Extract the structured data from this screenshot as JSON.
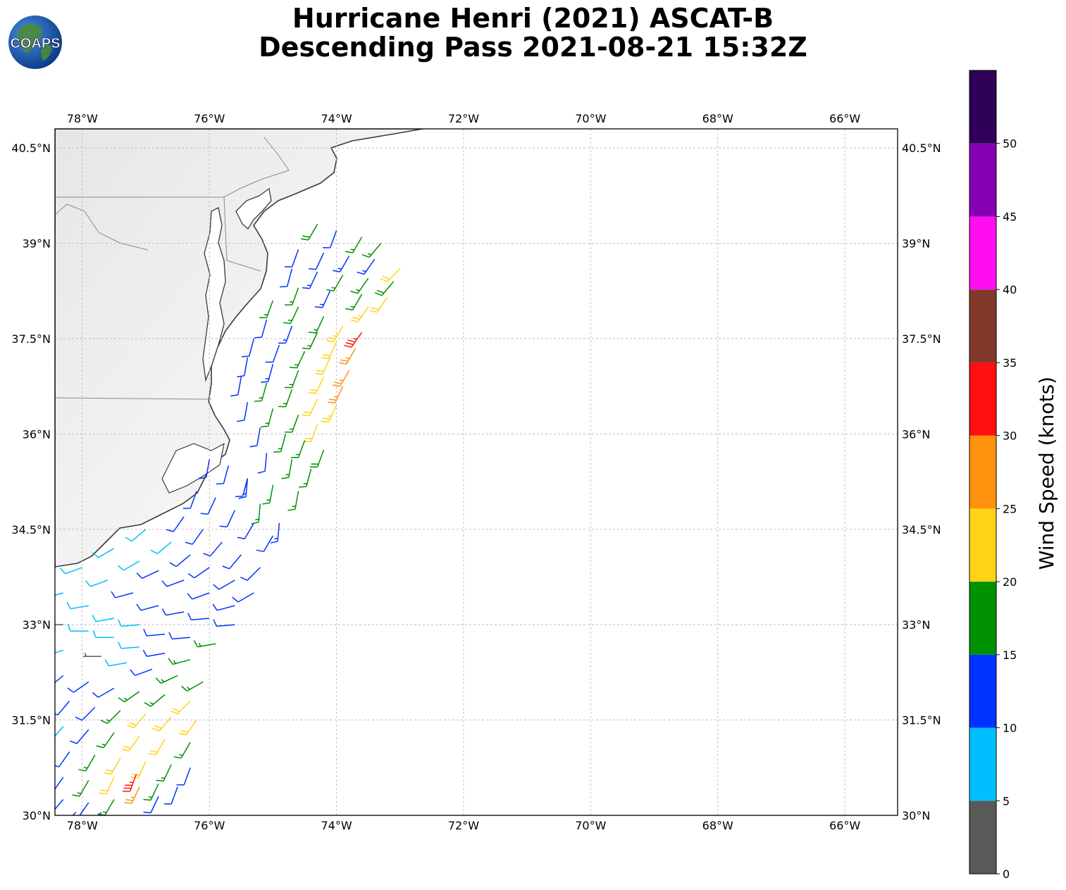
{
  "title": {
    "line1": "Hurricane Henri (2021) ASCAT-B",
    "line2": "Descending Pass 2021-08-21 15:32Z"
  },
  "logo": {
    "text": "COAPS",
    "icon": "globe-logo-icon"
  },
  "map": {
    "lon_range": [
      -78.43,
      -65.17
    ],
    "lat_range": [
      30.0,
      40.8
    ],
    "lon_ticks": [
      "78°W",
      "76°W",
      "74°W",
      "72°W",
      "70°W",
      "68°W",
      "66°W"
    ],
    "lat_ticks": [
      "40.5°N",
      "39°N",
      "37.5°N",
      "36°N",
      "34.5°N",
      "33°N",
      "31.5°N",
      "30°N"
    ],
    "gridlines": true,
    "background": "grey satellite imagery over land, white ocean"
  },
  "colorbar": {
    "label": "Wind Speed (knots)",
    "ticks": [
      "0",
      "5",
      "10",
      "15",
      "20",
      "25",
      "30",
      "35",
      "40",
      "45",
      "50"
    ],
    "bins": [
      {
        "min": 0,
        "max": 5,
        "color": "#595959"
      },
      {
        "min": 5,
        "max": 10,
        "color": "#00bfff"
      },
      {
        "min": 10,
        "max": 15,
        "color": "#0033ff"
      },
      {
        "min": 15,
        "max": 20,
        "color": "#009100"
      },
      {
        "min": 20,
        "max": 25,
        "color": "#ffd414"
      },
      {
        "min": 25,
        "max": 30,
        "color": "#ff930f"
      },
      {
        "min": 30,
        "max": 35,
        "color": "#ff1010"
      },
      {
        "min": 35,
        "max": 40,
        "color": "#80392b"
      },
      {
        "min": 40,
        "max": 45,
        "color": "#ff0ff0"
      },
      {
        "min": 45,
        "max": 50,
        "color": "#8600b3"
      },
      {
        "min": 50,
        "max": 55,
        "color": "#2e0058"
      }
    ]
  },
  "chart_data": {
    "type": "wind-barbs",
    "units": "knots",
    "note_direction": "direction in degrees the wind blows FROM",
    "swaths": [
      {
        "name": "north",
        "points": [
          [
            -74.3,
            39.3,
            18,
            210
          ],
          [
            -74.0,
            39.2,
            12,
            200
          ],
          [
            -73.6,
            39.1,
            16,
            210
          ],
          [
            -73.3,
            39.0,
            17,
            220
          ],
          [
            -74.6,
            38.9,
            11,
            200
          ],
          [
            -74.2,
            38.85,
            12,
            205
          ],
          [
            -73.8,
            38.8,
            13,
            210
          ],
          [
            -73.4,
            38.75,
            14,
            215
          ],
          [
            -73.0,
            38.6,
            22,
            225
          ],
          [
            -74.7,
            38.6,
            11,
            195
          ],
          [
            -74.3,
            38.55,
            13,
            205
          ],
          [
            -73.9,
            38.5,
            16,
            210
          ],
          [
            -73.5,
            38.45,
            17,
            215
          ],
          [
            -73.1,
            38.4,
            18,
            220
          ],
          [
            -74.6,
            38.3,
            16,
            200
          ],
          [
            -74.1,
            38.25,
            13,
            205
          ],
          [
            -73.6,
            38.2,
            16,
            210
          ],
          [
            -73.2,
            38.15,
            22,
            215
          ],
          [
            -73.5,
            38.0,
            24,
            215
          ]
        ]
      },
      {
        "name": "middle",
        "points": [
          [
            -75.0,
            38.1,
            16,
            200
          ],
          [
            -74.6,
            38.0,
            16,
            205
          ],
          [
            -74.2,
            37.85,
            17,
            205
          ],
          [
            -73.9,
            37.7,
            23,
            210
          ],
          [
            -73.6,
            37.6,
            33,
            215
          ],
          [
            -75.1,
            37.8,
            12,
            195
          ],
          [
            -74.7,
            37.7,
            13,
            200
          ],
          [
            -74.3,
            37.6,
            17,
            205
          ],
          [
            -74.0,
            37.45,
            22,
            205
          ],
          [
            -73.7,
            37.35,
            26,
            210
          ],
          [
            -75.3,
            37.5,
            11,
            195
          ],
          [
            -74.9,
            37.4,
            12,
            200
          ],
          [
            -74.5,
            37.3,
            16,
            205
          ],
          [
            -74.1,
            37.2,
            22,
            205
          ],
          [
            -73.8,
            37.0,
            27,
            210
          ],
          [
            -75.4,
            37.2,
            12,
            190
          ],
          [
            -75.0,
            37.1,
            13,
            195
          ],
          [
            -74.6,
            37.0,
            17,
            200
          ],
          [
            -74.2,
            36.9,
            22,
            205
          ],
          [
            -73.9,
            36.75,
            26,
            205
          ],
          [
            -75.5,
            36.9,
            11,
            190
          ],
          [
            -75.1,
            36.8,
            16,
            195
          ],
          [
            -74.7,
            36.7,
            17,
            200
          ],
          [
            -74.3,
            36.55,
            22,
            205
          ],
          [
            -74.0,
            36.45,
            24,
            205
          ],
          [
            -75.4,
            36.5,
            12,
            190
          ],
          [
            -75.0,
            36.4,
            16,
            195
          ],
          [
            -74.6,
            36.3,
            17,
            200
          ],
          [
            -74.3,
            36.15,
            22,
            200
          ],
          [
            -75.2,
            36.1,
            12,
            190
          ],
          [
            -74.8,
            36.0,
            16,
            195
          ],
          [
            -74.5,
            35.9,
            17,
            200
          ],
          [
            -74.2,
            35.75,
            18,
            200
          ],
          [
            -75.1,
            35.7,
            12,
            185
          ],
          [
            -74.7,
            35.6,
            17,
            190
          ],
          [
            -74.4,
            35.45,
            17,
            195
          ],
          [
            -75.4,
            35.3,
            13,
            185
          ],
          [
            -75.0,
            35.2,
            16,
            190
          ],
          [
            -74.6,
            35.1,
            17,
            190
          ],
          [
            -75.2,
            34.9,
            17,
            185
          ],
          [
            -74.9,
            34.6,
            13,
            185
          ]
        ]
      },
      {
        "name": "south",
        "points": [
          [
            -76.0,
            35.6,
            12,
            190
          ],
          [
            -75.7,
            35.5,
            12,
            195
          ],
          [
            -75.4,
            35.3,
            12,
            195
          ],
          [
            -76.2,
            35.1,
            12,
            200
          ],
          [
            -75.9,
            35.0,
            12,
            205
          ],
          [
            -75.6,
            34.8,
            12,
            205
          ],
          [
            -75.3,
            34.6,
            12,
            210
          ],
          [
            -75.0,
            34.4,
            12,
            210
          ],
          [
            -76.4,
            34.7,
            12,
            215
          ],
          [
            -76.1,
            34.5,
            12,
            215
          ],
          [
            -75.8,
            34.3,
            12,
            220
          ],
          [
            -75.5,
            34.1,
            12,
            220
          ],
          [
            -75.2,
            33.9,
            12,
            225
          ],
          [
            -77.0,
            34.5,
            8,
            230
          ],
          [
            -76.6,
            34.3,
            8,
            230
          ],
          [
            -76.3,
            34.1,
            12,
            230
          ],
          [
            -76.0,
            33.9,
            12,
            235
          ],
          [
            -75.6,
            33.7,
            12,
            240
          ],
          [
            -75.3,
            33.5,
            12,
            240
          ],
          [
            -77.5,
            34.2,
            8,
            240
          ],
          [
            -77.1,
            34.0,
            8,
            240
          ],
          [
            -76.8,
            33.85,
            12,
            245
          ],
          [
            -76.4,
            33.7,
            12,
            250
          ],
          [
            -76.0,
            33.5,
            12,
            250
          ],
          [
            -75.6,
            33.3,
            12,
            255
          ],
          [
            -78.0,
            33.9,
            8,
            250
          ],
          [
            -77.6,
            33.7,
            8,
            250
          ],
          [
            -77.2,
            33.5,
            12,
            255
          ],
          [
            -76.8,
            33.3,
            12,
            255
          ],
          [
            -76.4,
            33.2,
            12,
            260
          ],
          [
            -76.0,
            33.1,
            12,
            265
          ],
          [
            -75.6,
            33.0,
            12,
            265
          ],
          [
            -78.3,
            33.5,
            8,
            255
          ],
          [
            -77.9,
            33.3,
            8,
            260
          ],
          [
            -77.5,
            33.1,
            8,
            260
          ],
          [
            -77.1,
            33.0,
            8,
            265
          ],
          [
            -76.7,
            32.85,
            12,
            265
          ],
          [
            -76.3,
            32.8,
            12,
            265
          ],
          [
            -75.9,
            32.7,
            16,
            260
          ],
          [
            -78.3,
            33.0,
            3,
            270
          ],
          [
            -77.9,
            32.9,
            8,
            270
          ],
          [
            -77.5,
            32.8,
            8,
            270
          ],
          [
            -77.1,
            32.65,
            8,
            265
          ],
          [
            -76.7,
            32.55,
            12,
            260
          ],
          [
            -76.3,
            32.45,
            16,
            255
          ],
          [
            -78.3,
            32.6,
            8,
            250
          ],
          [
            -77.7,
            32.5,
            3,
            270
          ],
          [
            -77.3,
            32.4,
            8,
            260
          ],
          [
            -76.9,
            32.3,
            12,
            250
          ],
          [
            -76.5,
            32.2,
            16,
            245
          ],
          [
            -76.1,
            32.1,
            16,
            240
          ],
          [
            -78.3,
            32.2,
            12,
            230
          ],
          [
            -77.9,
            32.1,
            12,
            235
          ],
          [
            -77.5,
            32.0,
            12,
            240
          ],
          [
            -77.1,
            31.95,
            16,
            235
          ],
          [
            -76.7,
            31.9,
            17,
            230
          ],
          [
            -76.3,
            31.8,
            22,
            225
          ],
          [
            -78.2,
            31.8,
            12,
            220
          ],
          [
            -77.8,
            31.7,
            12,
            225
          ],
          [
            -77.4,
            31.65,
            17,
            225
          ],
          [
            -77.0,
            31.6,
            22,
            220
          ],
          [
            -76.6,
            31.55,
            22,
            220
          ],
          [
            -76.2,
            31.5,
            22,
            215
          ],
          [
            -78.3,
            31.4,
            8,
            220
          ],
          [
            -77.9,
            31.35,
            12,
            220
          ],
          [
            -77.5,
            31.3,
            17,
            215
          ],
          [
            -77.1,
            31.25,
            22,
            215
          ],
          [
            -76.7,
            31.2,
            22,
            210
          ],
          [
            -76.3,
            31.15,
            17,
            210
          ],
          [
            -78.2,
            31.0,
            12,
            215
          ],
          [
            -77.8,
            30.95,
            17,
            210
          ],
          [
            -77.4,
            30.9,
            22,
            210
          ],
          [
            -77.0,
            30.85,
            22,
            205
          ],
          [
            -76.6,
            30.8,
            17,
            205
          ],
          [
            -76.3,
            30.75,
            12,
            200
          ],
          [
            -78.3,
            30.6,
            12,
            215
          ],
          [
            -77.9,
            30.55,
            17,
            210
          ],
          [
            -77.5,
            30.6,
            22,
            205
          ],
          [
            -77.15,
            30.65,
            33,
            200
          ],
          [
            -76.8,
            30.5,
            17,
            205
          ],
          [
            -76.5,
            30.45,
            12,
            200
          ],
          [
            -78.3,
            30.25,
            12,
            220
          ],
          [
            -77.9,
            30.2,
            12,
            215
          ],
          [
            -77.5,
            30.25,
            17,
            210
          ],
          [
            -77.1,
            30.45,
            27,
            205
          ],
          [
            -76.8,
            30.3,
            12,
            205
          ],
          [
            -78.1,
            30.05,
            12,
            225
          ],
          [
            -77.7,
            30.05,
            12,
            220
          ]
        ]
      }
    ]
  }
}
